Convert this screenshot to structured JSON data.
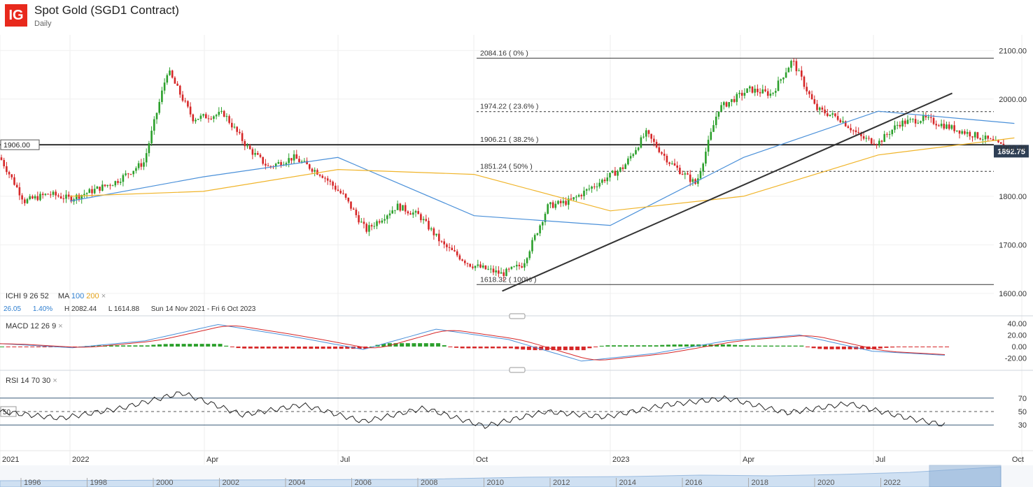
{
  "header": {
    "logo": "IG",
    "title": "Spot Gold (SGD1 Contract)",
    "subtitle": "Daily"
  },
  "indicators": {
    "ichi": {
      "name": "ICHI",
      "p1": "9",
      "p2": "26",
      "p3": "52"
    },
    "ma": {
      "name": "MA",
      "p1": "100",
      "p2": "200"
    },
    "close_x": "×",
    "macd": {
      "name": "MACD",
      "p1": "12",
      "p2": "26",
      "p3": "9"
    },
    "rsi": {
      "name": "RSI",
      "p1": "14",
      "p2": "70",
      "p3": "30"
    }
  },
  "info_bar": {
    "change": "26.05",
    "change_pct": "1.40%",
    "high": "H 2082.44",
    "low": "L 1614.88",
    "range": "Sun 14 Nov 2021 - Fri 6 Oct 2023"
  },
  "colors": {
    "up": "#2ca02c",
    "down": "#d62728",
    "ma100": "#4a90d9",
    "ma200": "#f0b429",
    "price_tag": "#2e3f55",
    "trendline": "#333333"
  },
  "chart_data": [
    {
      "type": "candlestick",
      "title": "Spot Gold (SGD1 Contract)",
      "interval": "Daily",
      "ylim": [
        1600,
        2100
      ],
      "y_ticks": [
        "2100.00",
        "2000.00",
        "1900.00",
        "1800.00",
        "1700.00",
        "1600.00"
      ],
      "x_ticks": [
        "2021",
        "2022",
        "Apr",
        "Jul",
        "Oct",
        "2023",
        "Apr",
        "Jul",
        "Oct"
      ],
      "close_path": {
        "x": [
          "2022-01-01",
          "2022-01-15",
          "2022-02-01",
          "2022-02-20",
          "2022-03-08",
          "2022-03-25",
          "2022-04-15",
          "2022-05-01",
          "2022-05-15",
          "2022-06-01",
          "2022-06-20",
          "2022-07-05",
          "2022-07-20",
          "2022-08-10",
          "2022-08-25",
          "2022-09-10",
          "2022-09-28",
          "2022-10-20",
          "2022-11-03",
          "2022-11-20",
          "2022-12-05",
          "2022-12-20",
          "2023-01-10",
          "2023-01-25",
          "2023-02-10",
          "2023-02-28",
          "2023-03-15",
          "2023-04-05",
          "2023-04-20",
          "2023-05-04",
          "2023-05-20",
          "2023-06-05",
          "2023-06-20",
          "2023-07-01",
          "2023-07-15",
          "2023-08-01",
          "2023-08-20",
          "2023-09-10",
          "2023-09-25",
          "2023-10-06"
        ],
        "y": [
          1795,
          1810,
          1830,
          1870,
          2060,
          1960,
          1970,
          1900,
          1860,
          1880,
          1845,
          1800,
          1730,
          1780,
          1760,
          1700,
          1660,
          1640,
          1660,
          1780,
          1790,
          1820,
          1860,
          1930,
          1870,
          1825,
          1980,
          2020,
          2010,
          2080,
          1980,
          1960,
          1920,
          1910,
          1950,
          1960,
          1940,
          1920,
          1900,
          1892.75
        ]
      },
      "series": [
        {
          "name": "MA 100",
          "x": [
            "2022-01-01",
            "2022-04-01",
            "2022-07-01",
            "2022-10-01",
            "2023-01-01",
            "2023-04-01",
            "2023-07-01",
            "2023-10-01"
          ],
          "y": [
            1790,
            1840,
            1880,
            1760,
            1740,
            1880,
            1975,
            1950
          ]
        },
        {
          "name": "MA 200",
          "x": [
            "2022-01-01",
            "2022-04-01",
            "2022-07-01",
            "2022-10-01",
            "2023-01-01",
            "2023-04-01",
            "2023-07-01",
            "2023-10-01"
          ],
          "y": [
            1800,
            1810,
            1855,
            1845,
            1770,
            1800,
            1885,
            1920
          ]
        }
      ],
      "horizontal_line": {
        "label": "1906.00",
        "value": 1906
      },
      "last_price": "1892.75",
      "fibonacci": [
        {
          "label": "2084.16 ( 0% )",
          "value": 2084.16,
          "style": "solid"
        },
        {
          "label": "1974.22 ( 23.6% )",
          "value": 1974.22,
          "style": "dashed"
        },
        {
          "label": "1906.21 ( 38.2% )",
          "value": 1906.21,
          "style": "solid"
        },
        {
          "label": "1851.24 ( 50% )",
          "value": 1851.24,
          "style": "dashed"
        },
        {
          "label": "1618.32 ( 100% )",
          "value": 1618.32,
          "style": "solid"
        }
      ],
      "trendline": {
        "from": {
          "x": "2022-10-20",
          "y": 1605
        },
        "to": {
          "x": "2023-08-20",
          "y": 2012
        }
      }
    },
    {
      "type": "line",
      "title": "MACD 12 26 9",
      "ylim": [
        -25,
        45
      ],
      "y_ticks": [
        "40.00",
        "20.00",
        "0.00",
        "-20.00"
      ],
      "series": [
        {
          "name": "MACD",
          "x": [
            0,
            12,
            24,
            36,
            48,
            60,
            72,
            84,
            96,
            108,
            120,
            132,
            144,
            156
          ],
          "y": [
            5,
            -2,
            10,
            38,
            18,
            -5,
            30,
            12,
            -25,
            -12,
            10,
            20,
            -8,
            -15
          ]
        }
      ]
    },
    {
      "type": "line",
      "title": "RSI 14 70 30",
      "ylim": [
        10,
        90
      ],
      "y_ticks": [
        "70",
        "50",
        "30"
      ],
      "series": [
        {
          "name": "RSI",
          "x": [
            0,
            10,
            20,
            30,
            40,
            50,
            60,
            70,
            80,
            90,
            100,
            110,
            120,
            130,
            140,
            150,
            156
          ],
          "y": [
            50,
            40,
            55,
            78,
            45,
            60,
            35,
            55,
            28,
            50,
            42,
            60,
            70,
            48,
            62,
            40,
            30
          ]
        }
      ]
    }
  ],
  "navigator": {
    "years": [
      "1996",
      "1998",
      "2000",
      "2002",
      "2004",
      "2006",
      "2008",
      "2010",
      "2012",
      "2014",
      "2016",
      "2018",
      "2020",
      "2022"
    ]
  }
}
